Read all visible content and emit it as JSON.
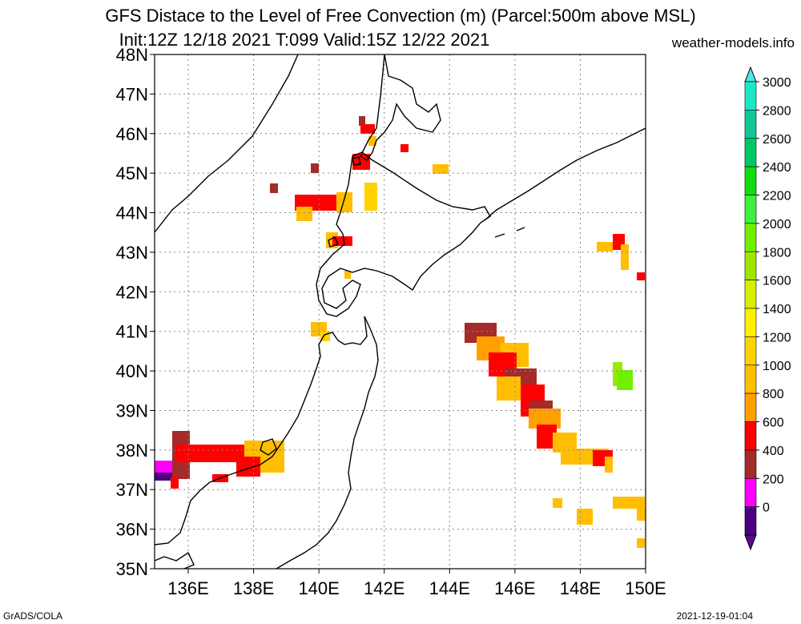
{
  "header": {
    "title_line1": "GFS Distace to the Level of Free Convection (m) (Parcel:500m above MSL)",
    "title_line2": "Init:12Z 12/18 2021 T:099 Valid:15Z 12/22 2021",
    "site": "weather-models.info"
  },
  "axes": {
    "lat_labels": [
      "48N",
      "47N",
      "46N",
      "45N",
      "44N",
      "43N",
      "42N",
      "41N",
      "40N",
      "39N",
      "38N",
      "37N",
      "36N",
      "35N"
    ],
    "lon_labels": [
      "136E",
      "138E",
      "140E",
      "142E",
      "144E",
      "146E",
      "148E",
      "150E"
    ]
  },
  "colorbar": {
    "labels": [
      "3000",
      "2800",
      "2600",
      "2400",
      "2200",
      "2000",
      "1800",
      "1600",
      "1400",
      "1200",
      "1000",
      "800",
      "600",
      "400",
      "200",
      "0"
    ],
    "colors": [
      "#1de6c8",
      "#10c896",
      "#00c864",
      "#10dc10",
      "#3cf03c",
      "#70f000",
      "#a0e600",
      "#d7ee00",
      "#fff000",
      "#ffd200",
      "#ffbe00",
      "#ffa000",
      "#ff0000",
      "#a52a2a",
      "#ff00ff",
      "#4b0082"
    ],
    "top_arrow_color": "#50e6e6",
    "bottom_arrow_color": "#5a0a8c"
  },
  "footer": {
    "left": "GrADS/COLA",
    "right": "2021-12-19-01:04"
  }
}
